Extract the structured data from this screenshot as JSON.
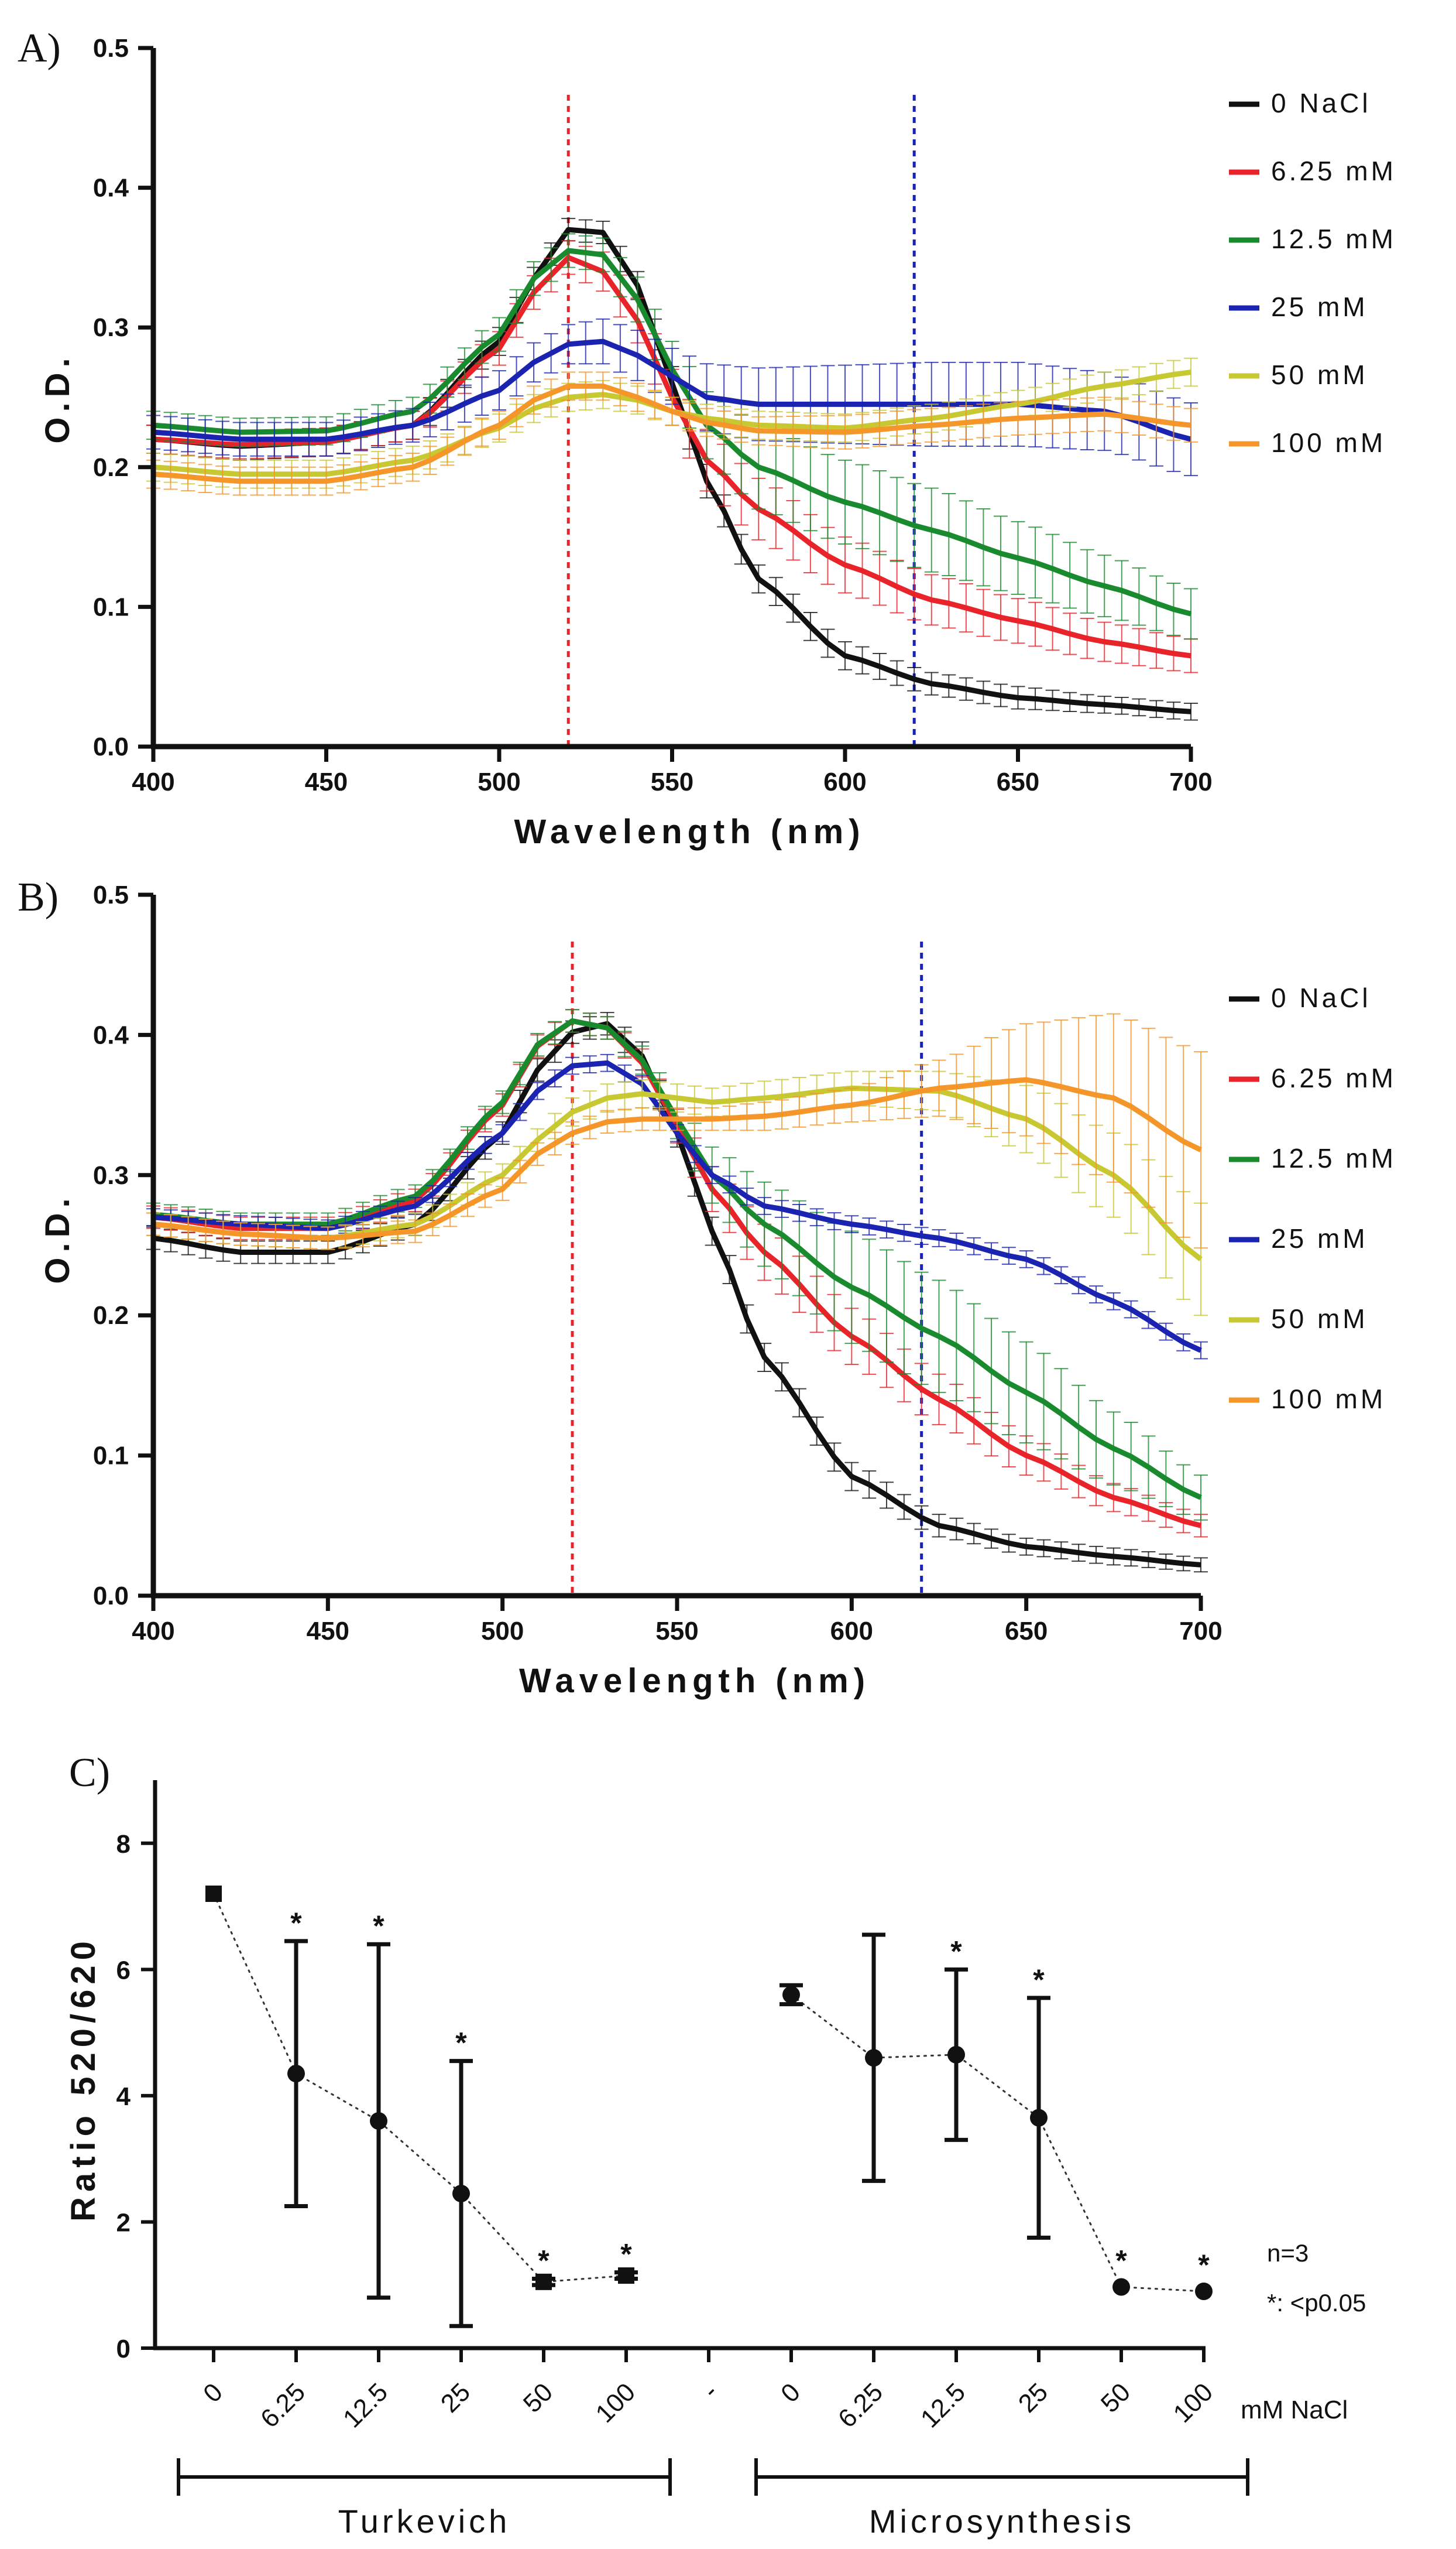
{
  "colors": {
    "0 NaCl": "#111111",
    "6.25 mM": "#e8232a",
    "12.5 mM": "#1a8a2e",
    "25 mM": "#1b24b0",
    "50 mM": "#c8c832",
    "100 mM": "#f5962a",
    "ref520": "#e8232a",
    "ref620": "#1b24b0"
  },
  "chart_data": [
    {
      "type": "line",
      "panel": "A)",
      "xlabel": "Wavelength (nm)",
      "ylabel": "O.D.",
      "xlim": [
        400,
        700
      ],
      "ylim": [
        0.0,
        0.5
      ],
      "xticks": [
        "400",
        "450",
        "500",
        "550",
        "600",
        "650",
        "700"
      ],
      "yticks": [
        "0.0",
        "0.1",
        "0.2",
        "0.3",
        "0.4",
        "0.5"
      ],
      "reference_lines": [
        520,
        620
      ],
      "legend": [
        "0 NaCl",
        "6.25 mM",
        "12.5 mM",
        "25 mM",
        "50 mM",
        "100 mM"
      ],
      "series": [
        {
          "name": "0 NaCl",
          "x": [
            400,
            425,
            450,
            475,
            500,
            510,
            520,
            530,
            540,
            550,
            560,
            575,
            600,
            625,
            650,
            675,
            700
          ],
          "y": [
            0.22,
            0.215,
            0.218,
            0.23,
            0.29,
            0.335,
            0.37,
            0.368,
            0.33,
            0.26,
            0.19,
            0.12,
            0.065,
            0.045,
            0.035,
            0.03,
            0.025
          ],
          "err": [
            0.01,
            0.01,
            0.01,
            0.01,
            0.01,
            0.008,
            0.008,
            0.008,
            0.01,
            0.012,
            0.012,
            0.01,
            0.01,
            0.008,
            0.008,
            0.006,
            0.006
          ]
        },
        {
          "name": "6.25 mM",
          "x": [
            400,
            425,
            450,
            475,
            500,
            510,
            520,
            530,
            540,
            550,
            560,
            575,
            600,
            625,
            650,
            675,
            700
          ],
          "y": [
            0.22,
            0.216,
            0.218,
            0.23,
            0.285,
            0.325,
            0.35,
            0.34,
            0.305,
            0.25,
            0.205,
            0.17,
            0.13,
            0.105,
            0.09,
            0.075,
            0.065
          ],
          "err": [
            0.01,
            0.01,
            0.01,
            0.01,
            0.012,
            0.012,
            0.012,
            0.014,
            0.016,
            0.02,
            0.022,
            0.022,
            0.02,
            0.018,
            0.016,
            0.014,
            0.012
          ]
        },
        {
          "name": "12.5 mM",
          "x": [
            400,
            425,
            450,
            475,
            500,
            510,
            520,
            530,
            540,
            550,
            560,
            575,
            600,
            625,
            650,
            675,
            700
          ],
          "y": [
            0.23,
            0.225,
            0.226,
            0.24,
            0.295,
            0.335,
            0.355,
            0.352,
            0.32,
            0.27,
            0.23,
            0.2,
            0.175,
            0.155,
            0.135,
            0.115,
            0.095
          ],
          "err": [
            0.01,
            0.01,
            0.01,
            0.01,
            0.012,
            0.012,
            0.012,
            0.012,
            0.016,
            0.02,
            0.024,
            0.03,
            0.03,
            0.03,
            0.026,
            0.022,
            0.018
          ]
        },
        {
          "name": "25 mM",
          "x": [
            400,
            425,
            450,
            475,
            500,
            510,
            520,
            530,
            540,
            550,
            560,
            575,
            600,
            625,
            650,
            675,
            700
          ],
          "y": [
            0.225,
            0.22,
            0.22,
            0.23,
            0.255,
            0.275,
            0.288,
            0.29,
            0.28,
            0.265,
            0.25,
            0.245,
            0.245,
            0.245,
            0.245,
            0.24,
            0.22
          ],
          "err": [
            0.012,
            0.012,
            0.012,
            0.012,
            0.014,
            0.014,
            0.014,
            0.016,
            0.018,
            0.02,
            0.024,
            0.026,
            0.028,
            0.03,
            0.03,
            0.028,
            0.026
          ]
        },
        {
          "name": "50 mM",
          "x": [
            400,
            425,
            450,
            475,
            500,
            510,
            520,
            530,
            540,
            550,
            560,
            575,
            600,
            625,
            650,
            675,
            700
          ],
          "y": [
            0.2,
            0.195,
            0.195,
            0.205,
            0.228,
            0.242,
            0.25,
            0.252,
            0.248,
            0.24,
            0.235,
            0.23,
            0.228,
            0.235,
            0.245,
            0.258,
            0.268
          ],
          "err": [
            0.01,
            0.01,
            0.01,
            0.01,
            0.01,
            0.01,
            0.01,
            0.01,
            0.01,
            0.01,
            0.01,
            0.01,
            0.01,
            0.01,
            0.01,
            0.01,
            0.01
          ]
        },
        {
          "name": "100 mM",
          "x": [
            400,
            425,
            450,
            475,
            500,
            510,
            520,
            530,
            540,
            550,
            560,
            575,
            600,
            625,
            650,
            675,
            700
          ],
          "y": [
            0.195,
            0.19,
            0.19,
            0.2,
            0.23,
            0.248,
            0.258,
            0.258,
            0.25,
            0.24,
            0.232,
            0.226,
            0.225,
            0.23,
            0.235,
            0.238,
            0.23
          ],
          "err": [
            0.01,
            0.01,
            0.01,
            0.01,
            0.01,
            0.01,
            0.01,
            0.01,
            0.01,
            0.01,
            0.01,
            0.01,
            0.012,
            0.012,
            0.012,
            0.012,
            0.012
          ]
        }
      ]
    },
    {
      "type": "line",
      "panel": "B)",
      "xlabel": "Wavelength (nm)",
      "ylabel": "O.D.",
      "xlim": [
        400,
        700
      ],
      "ylim": [
        0.0,
        0.5
      ],
      "xticks": [
        "400",
        "450",
        "500",
        "550",
        "600",
        "650",
        "700"
      ],
      "yticks": [
        "0.0",
        "0.1",
        "0.2",
        "0.3",
        "0.4",
        "0.5"
      ],
      "reference_lines": [
        520,
        620
      ],
      "legend": [
        "0 NaCl",
        "6.25 mM",
        "12.5 mM",
        "25 mM",
        "50 mM",
        "100 mM"
      ],
      "series": [
        {
          "name": "0 NaCl",
          "x": [
            400,
            425,
            450,
            475,
            500,
            510,
            520,
            530,
            540,
            550,
            560,
            575,
            600,
            625,
            650,
            675,
            700
          ],
          "y": [
            0.255,
            0.245,
            0.245,
            0.265,
            0.33,
            0.375,
            0.402,
            0.408,
            0.385,
            0.33,
            0.26,
            0.17,
            0.085,
            0.05,
            0.035,
            0.028,
            0.022
          ],
          "err": [
            0.008,
            0.008,
            0.008,
            0.008,
            0.008,
            0.008,
            0.008,
            0.008,
            0.01,
            0.01,
            0.01,
            0.01,
            0.01,
            0.008,
            0.006,
            0.006,
            0.005
          ]
        },
        {
          "name": "6.25 mM",
          "x": [
            400,
            425,
            450,
            475,
            500,
            510,
            520,
            530,
            540,
            550,
            560,
            575,
            600,
            625,
            650,
            675,
            700
          ],
          "y": [
            0.27,
            0.262,
            0.262,
            0.282,
            0.35,
            0.392,
            0.41,
            0.405,
            0.38,
            0.335,
            0.29,
            0.245,
            0.185,
            0.14,
            0.1,
            0.07,
            0.05
          ],
          "err": [
            0.008,
            0.008,
            0.008,
            0.008,
            0.008,
            0.008,
            0.008,
            0.008,
            0.01,
            0.012,
            0.016,
            0.02,
            0.02,
            0.018,
            0.014,
            0.01,
            0.008
          ]
        },
        {
          "name": "12.5 mM",
          "x": [
            400,
            425,
            450,
            475,
            500,
            510,
            520,
            530,
            540,
            550,
            560,
            575,
            600,
            625,
            650,
            675,
            700
          ],
          "y": [
            0.272,
            0.265,
            0.265,
            0.285,
            0.352,
            0.393,
            0.41,
            0.405,
            0.382,
            0.34,
            0.3,
            0.265,
            0.22,
            0.185,
            0.145,
            0.105,
            0.07
          ],
          "err": [
            0.008,
            0.008,
            0.008,
            0.008,
            0.008,
            0.008,
            0.008,
            0.008,
            0.01,
            0.014,
            0.02,
            0.03,
            0.04,
            0.04,
            0.036,
            0.026,
            0.016
          ]
        },
        {
          "name": "25 mM",
          "x": [
            400,
            425,
            450,
            475,
            500,
            510,
            520,
            530,
            540,
            550,
            560,
            575,
            600,
            625,
            650,
            675,
            700
          ],
          "y": [
            0.27,
            0.265,
            0.262,
            0.278,
            0.33,
            0.36,
            0.378,
            0.38,
            0.365,
            0.33,
            0.3,
            0.278,
            0.265,
            0.255,
            0.24,
            0.21,
            0.175
          ],
          "err": [
            0.006,
            0.006,
            0.006,
            0.006,
            0.006,
            0.006,
            0.006,
            0.006,
            0.006,
            0.006,
            0.006,
            0.006,
            0.006,
            0.006,
            0.006,
            0.006,
            0.006
          ]
        },
        {
          "name": "50 mM",
          "x": [
            400,
            425,
            450,
            475,
            500,
            510,
            520,
            530,
            540,
            550,
            560,
            575,
            600,
            625,
            650,
            675,
            700
          ],
          "y": [
            0.265,
            0.258,
            0.255,
            0.265,
            0.3,
            0.325,
            0.345,
            0.355,
            0.358,
            0.355,
            0.352,
            0.355,
            0.362,
            0.36,
            0.34,
            0.3,
            0.24
          ],
          "err": [
            0.008,
            0.008,
            0.008,
            0.008,
            0.008,
            0.008,
            0.01,
            0.01,
            0.01,
            0.01,
            0.01,
            0.012,
            0.012,
            0.014,
            0.024,
            0.03,
            0.04
          ]
        },
        {
          "name": "100 mM",
          "x": [
            400,
            425,
            450,
            475,
            500,
            510,
            520,
            530,
            540,
            550,
            560,
            575,
            600,
            625,
            650,
            675,
            700
          ],
          "y": [
            0.265,
            0.258,
            0.255,
            0.26,
            0.29,
            0.315,
            0.33,
            0.338,
            0.34,
            0.34,
            0.34,
            0.342,
            0.35,
            0.362,
            0.368,
            0.355,
            0.318
          ],
          "err": [
            0.008,
            0.008,
            0.008,
            0.008,
            0.008,
            0.008,
            0.008,
            0.008,
            0.008,
            0.008,
            0.008,
            0.01,
            0.012,
            0.02,
            0.04,
            0.06,
            0.07
          ]
        }
      ]
    },
    {
      "type": "scatter",
      "panel": "C)",
      "ylabel": "Ratio 520/620",
      "ylim": [
        0,
        9
      ],
      "yticks": [
        "0",
        "2",
        "4",
        "6",
        "8"
      ],
      "xunit": "mM NaCl",
      "categories": [
        "0",
        "6.25",
        "12.5",
        "25",
        "50",
        "100",
        "-",
        "0",
        "6.25",
        "12.5",
        "25",
        "50",
        "100"
      ],
      "groups": [
        {
          "name": "Turkevich",
          "span": [
            0,
            5
          ]
        },
        {
          "name": "Microsynthesis",
          "span": [
            7,
            12
          ]
        }
      ],
      "series": [
        {
          "name": "Turkevich",
          "points": [
            {
              "cat": 0,
              "y": 7.2,
              "err": 0.0,
              "marker": "square",
              "star": false
            },
            {
              "cat": 1,
              "y": 4.35,
              "err": 2.1,
              "marker": "circle",
              "star": true
            },
            {
              "cat": 2,
              "y": 3.6,
              "err": 2.8,
              "marker": "circle",
              "star": true
            },
            {
              "cat": 3,
              "y": 2.45,
              "err": 2.1,
              "marker": "circle",
              "star": true
            },
            {
              "cat": 4,
              "y": 1.05,
              "err": 0.05,
              "marker": "square",
              "star": true
            },
            {
              "cat": 5,
              "y": 1.15,
              "err": 0.05,
              "marker": "square",
              "star": true
            }
          ]
        },
        {
          "name": "Microsynthesis",
          "points": [
            {
              "cat": 7,
              "y": 5.6,
              "err": 0.15,
              "marker": "circle",
              "star": false
            },
            {
              "cat": 8,
              "y": 4.6,
              "err": 1.95,
              "marker": "circle",
              "star": false
            },
            {
              "cat": 9,
              "y": 4.65,
              "err": 1.35,
              "marker": "circle",
              "star": true
            },
            {
              "cat": 10,
              "y": 3.65,
              "err": 1.9,
              "marker": "circle",
              "star": true
            },
            {
              "cat": 11,
              "y": 0.97,
              "err": 0.03,
              "marker": "circle",
              "star": true
            },
            {
              "cat": 12,
              "y": 0.9,
              "err": 0.03,
              "marker": "circle",
              "star": true
            }
          ]
        }
      ],
      "annotations": [
        "n=3",
        "*: <p0.05"
      ]
    }
  ]
}
